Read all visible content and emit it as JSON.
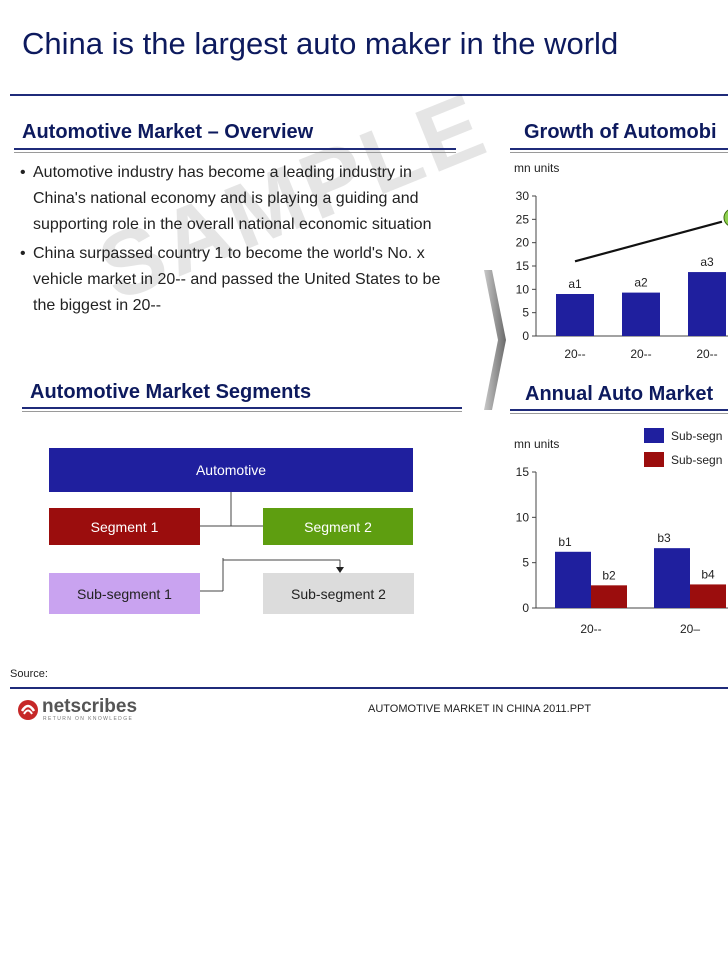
{
  "slide": {
    "title": "China is the largest auto maker in the world"
  },
  "overview": {
    "heading": "Automotive Market – Overview",
    "bullets": [
      "Automotive industry has become a leading industry in China's national economy and is playing a guiding and supporting role in the overall national economic situation",
      "China surpassed country 1 to become the world's No. x vehicle market in 20-- and passed the United States to be the biggest in 20--"
    ],
    "bullet_marker": "•"
  },
  "watermark": "SAMPLE",
  "segments": {
    "heading": "Automotive Market Segments",
    "root": "Automotive",
    "segment1": "Segment 1",
    "segment2": "Segment 2",
    "subsegment1": "Sub-segment 1",
    "subsegment2": "Sub-segment 2",
    "colors": {
      "root": "#1f1f9e",
      "segment1": "#9b0d0d",
      "segment2": "#5e9e10",
      "subsegment1": "#c9a3f0",
      "subsegment2": "#dcdcdc"
    }
  },
  "growth": {
    "heading": "Growth of Automobi"
  },
  "annual": {
    "heading": "Annual Auto Market"
  },
  "chart_data": [
    {
      "type": "bar",
      "title": "Growth of Automobi",
      "ylabel": "mn units",
      "ylim": [
        0,
        30
      ],
      "yticks": [
        0,
        5,
        10,
        15,
        20,
        25,
        30
      ],
      "categories": [
        "20--",
        "20--",
        "20--"
      ],
      "values": [
        9,
        9.3,
        13.7
      ],
      "data_labels": [
        "a1",
        "a2",
        "a3"
      ],
      "trend_line": {
        "start": 16,
        "end": 24.5
      },
      "bar_color": "#1f1f9e",
      "grid": false
    },
    {
      "type": "bar",
      "title": "Annual Auto Market",
      "ylabel": "mn units",
      "ylim": [
        0,
        15
      ],
      "yticks": [
        0,
        5,
        10,
        15
      ],
      "categories": [
        "20--",
        "20–"
      ],
      "series": [
        {
          "name": "Sub-segn",
          "values": [
            6.2,
            6.6
          ],
          "color": "#1f1f9e",
          "data_labels": [
            "b1",
            "b3"
          ]
        },
        {
          "name": "Sub-segn",
          "values": [
            2.5,
            2.6
          ],
          "color": "#9b0d0d",
          "data_labels": [
            "b2",
            "b4"
          ]
        }
      ],
      "legend": "top-right",
      "grid": false
    }
  ],
  "footer": {
    "source": "Source:",
    "filename": "AUTOMOTIVE MARKET IN CHINA 2011.PPT",
    "logo_text": "netscribes",
    "logo_tagline": "RETURN ON KNOWLEDGE",
    "logo_color": "#c62828"
  }
}
